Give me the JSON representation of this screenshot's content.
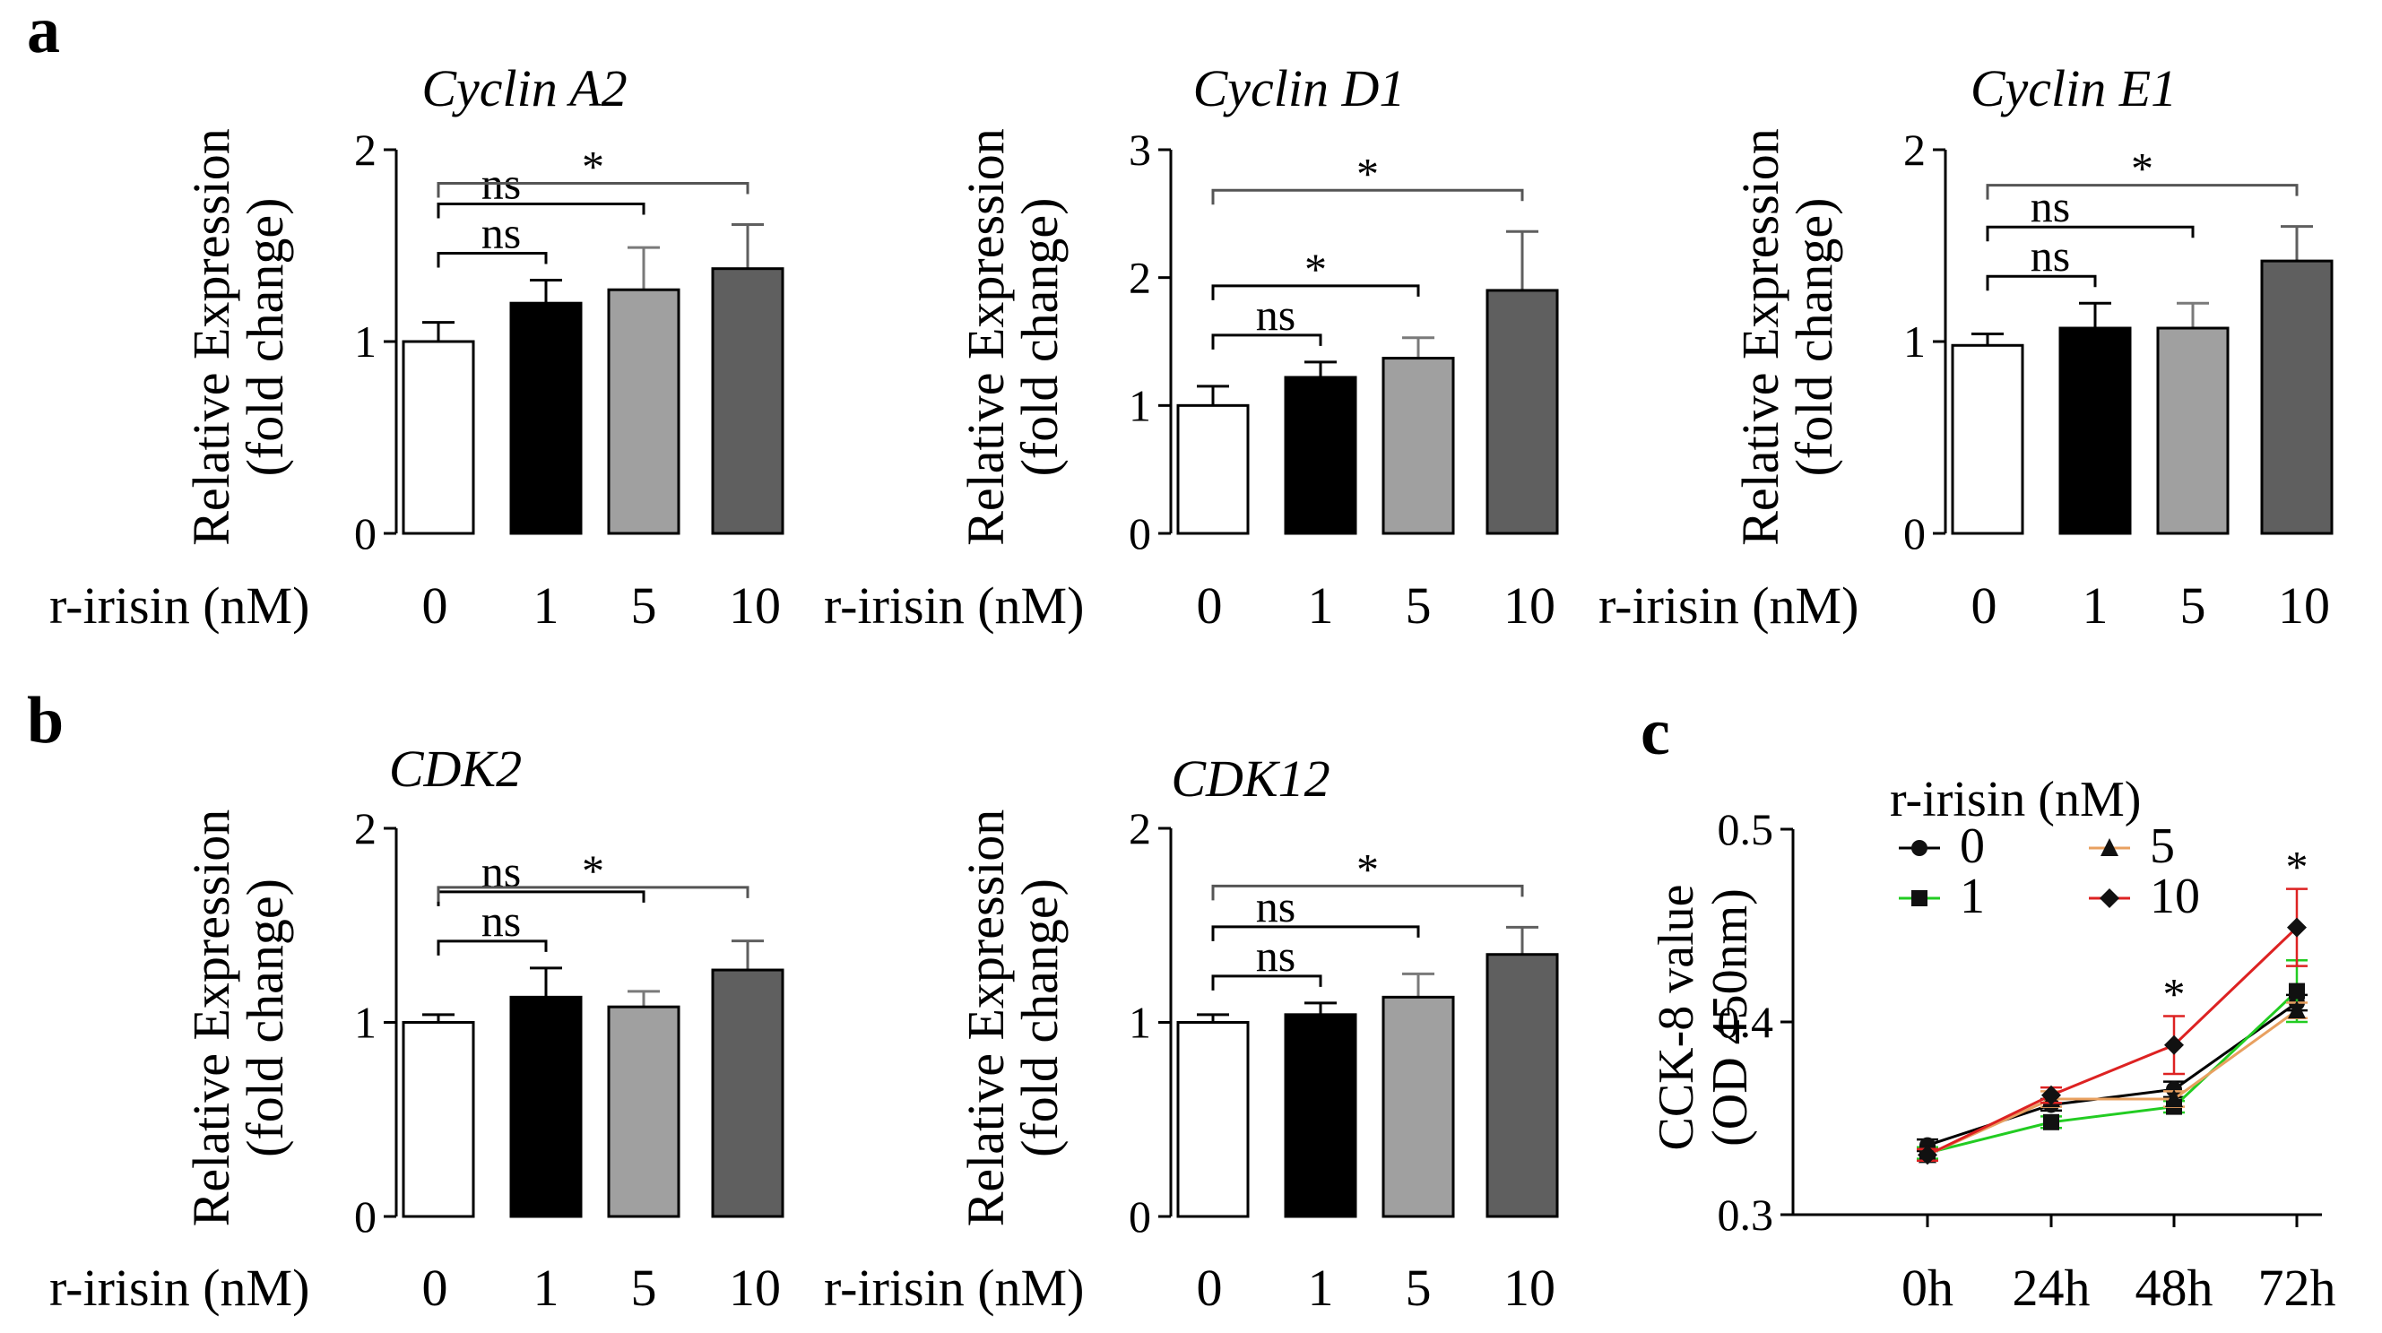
{
  "panel_letters": [
    "a",
    "b",
    "c"
  ],
  "colors": {
    "bar_0": "#ffffff",
    "bar_1": "#000000",
    "bar_5": "#a0a0a0",
    "bar_10": "#5f5f5f",
    "line_0": "#000000",
    "line_1": "#22cc22",
    "line_5": "#e8a060",
    "line_10": "#dd2222"
  },
  "chart_data": [
    {
      "panel": "a",
      "type": "bar",
      "title": "Cyclin A2",
      "ylabel": [
        "Relative Expression",
        "(fold change)"
      ],
      "xlabel": "r-irisin (nM)",
      "categories": [
        "0",
        "1",
        "5",
        "10"
      ],
      "values": [
        1.0,
        1.2,
        1.27,
        1.38
      ],
      "errors": [
        0.1,
        0.12,
        0.22,
        0.23
      ],
      "ylim": [
        0,
        2
      ],
      "yticks": [
        "0",
        "1",
        "2"
      ],
      "significance": [
        {
          "from": 0,
          "to": 1,
          "label": "ns"
        },
        {
          "from": 0,
          "to": 2,
          "label": "ns"
        },
        {
          "from": 0,
          "to": 3,
          "label": "*"
        }
      ]
    },
    {
      "panel": "a",
      "type": "bar",
      "title": "Cyclin D1",
      "ylabel": [
        "Relative Expression",
        "(fold change)"
      ],
      "xlabel": "r-irisin (nM)",
      "categories": [
        "0",
        "1",
        "5",
        "10"
      ],
      "values": [
        1.0,
        1.22,
        1.37,
        1.9
      ],
      "errors": [
        0.15,
        0.12,
        0.16,
        0.46
      ],
      "ylim": [
        0,
        3
      ],
      "yticks": [
        "0",
        "1",
        "2",
        "3"
      ],
      "significance": [
        {
          "from": 0,
          "to": 1,
          "label": "ns"
        },
        {
          "from": 0,
          "to": 2,
          "label": "*"
        },
        {
          "from": 0,
          "to": 3,
          "label": "*"
        }
      ]
    },
    {
      "panel": "a",
      "type": "bar",
      "title": "Cyclin E1",
      "ylabel": [
        "Relative Expression",
        "(fold change)"
      ],
      "xlabel": "r-irisin (nM)",
      "categories": [
        "0",
        "1",
        "5",
        "10"
      ],
      "values": [
        0.98,
        1.07,
        1.07,
        1.42
      ],
      "errors": [
        0.06,
        0.13,
        0.13,
        0.18
      ],
      "ylim": [
        0,
        2
      ],
      "yticks": [
        "0",
        "1",
        "2"
      ],
      "significance": [
        {
          "from": 0,
          "to": 1,
          "label": "ns"
        },
        {
          "from": 0,
          "to": 2,
          "label": "ns"
        },
        {
          "from": 0,
          "to": 3,
          "label": "*"
        }
      ]
    },
    {
      "panel": "b",
      "type": "bar",
      "title": "CDK2",
      "ylabel": [
        "Relative Expression",
        "(fold change)"
      ],
      "xlabel": "r-irisin (nM)",
      "categories": [
        "0",
        "1",
        "5",
        "10"
      ],
      "values": [
        1.0,
        1.13,
        1.08,
        1.27
      ],
      "errors": [
        0.04,
        0.15,
        0.08,
        0.15
      ],
      "ylim": [
        0,
        2
      ],
      "yticks": [
        "0",
        "1",
        "2"
      ],
      "significance": [
        {
          "from": 0,
          "to": 1,
          "label": "ns"
        },
        {
          "from": 0,
          "to": 2,
          "label": "ns"
        },
        {
          "from": 0,
          "to": 3,
          "label": "*"
        }
      ]
    },
    {
      "panel": "b",
      "type": "bar",
      "title": "CDK12",
      "ylabel": [
        "Relative Expression",
        "(fold change)"
      ],
      "xlabel": "r-irisin (nM)",
      "categories": [
        "0",
        "1",
        "5",
        "10"
      ],
      "values": [
        1.0,
        1.04,
        1.13,
        1.35
      ],
      "errors": [
        0.04,
        0.06,
        0.12,
        0.14
      ],
      "ylim": [
        0,
        2
      ],
      "yticks": [
        "0",
        "1",
        "2"
      ],
      "significance": [
        {
          "from": 0,
          "to": 1,
          "label": "ns"
        },
        {
          "from": 0,
          "to": 2,
          "label": "ns"
        },
        {
          "from": 0,
          "to": 3,
          "label": "*"
        }
      ]
    },
    {
      "panel": "c",
      "type": "line",
      "title": "",
      "ylabel": [
        "CCK-8 value",
        "(OD 450nm)"
      ],
      "xlabel": "",
      "x": [
        "0h",
        "24h",
        "48h",
        "72h"
      ],
      "ylim": [
        0.3,
        0.5
      ],
      "yticks": [
        "0.3",
        "0.4",
        "0.5"
      ],
      "legend_title": "r-irisin (nM)",
      "legend_position": "top-left",
      "series": [
        {
          "name": "0",
          "values": [
            0.336,
            0.357,
            0.365,
            0.41
          ],
          "errors": [
            0.003,
            0.003,
            0.004,
            0.004
          ],
          "marker": "circle"
        },
        {
          "name": "1",
          "values": [
            0.332,
            0.348,
            0.356,
            0.416
          ],
          "errors": [
            0.003,
            0.003,
            0.003,
            0.016
          ],
          "marker": "square"
        },
        {
          "name": "5",
          "values": [
            0.331,
            0.36,
            0.36,
            0.406
          ],
          "errors": [
            0.003,
            0.004,
            0.004,
            0.004
          ],
          "marker": "triangle"
        },
        {
          "name": "10",
          "values": [
            0.331,
            0.362,
            0.388,
            0.449
          ],
          "errors": [
            0.003,
            0.004,
            0.015,
            0.02
          ],
          "marker": "diamond"
        }
      ],
      "significance_marks": [
        {
          "x_index": 2,
          "label": "*"
        },
        {
          "x_index": 3,
          "label": "*"
        }
      ]
    }
  ]
}
